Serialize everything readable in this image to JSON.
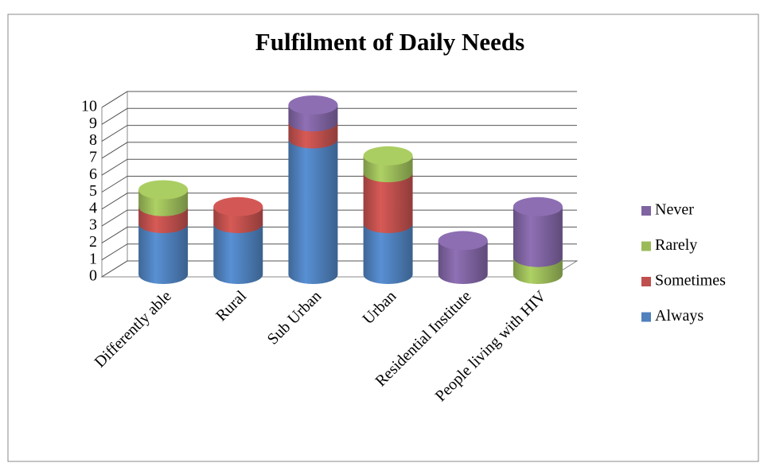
{
  "chart_data": {
    "type": "bar3d-stacked-cylinder",
    "title": "Fulfilment of Daily Needs",
    "categories": [
      "Differently able",
      "Rural",
      "Sub Urban",
      "Urban",
      "Residential Institute",
      "People living with HIV"
    ],
    "series": [
      {
        "name": "Always",
        "color": "#4f81bd",
        "values": [
          3,
          3,
          8,
          3,
          0,
          0
        ]
      },
      {
        "name": "Sometimes",
        "color": "#c0504d",
        "values": [
          1,
          1,
          1,
          3,
          0,
          0
        ]
      },
      {
        "name": "Rarely",
        "color": "#9bbb59",
        "values": [
          1,
          0,
          0,
          1,
          0,
          1
        ]
      },
      {
        "name": "Never",
        "color": "#8064a2",
        "values": [
          0,
          0,
          1,
          0,
          2,
          3
        ]
      }
    ],
    "ylim": [
      0,
      10
    ],
    "yticks": [
      0,
      1,
      2,
      3,
      4,
      5,
      6,
      7,
      8,
      9,
      10
    ],
    "grid": true,
    "legend": "right",
    "stacked": true
  }
}
